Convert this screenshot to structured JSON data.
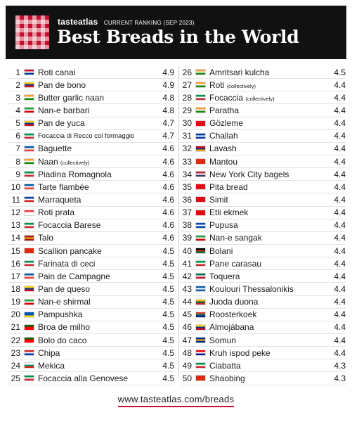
{
  "header": {
    "brand": "tasteatlas",
    "ranking": "CURRENT RANKING (SEP 2023)",
    "title": "Best Breads in the World",
    "logo_icon": "checkered-tablecloth-icon",
    "accent_color": "#c8102e"
  },
  "left_column": [
    {
      "rank": "1",
      "name": "Roti canai",
      "score": "4.9",
      "flag": [
        "#c8102e",
        "#ffffff",
        "#003893"
      ]
    },
    {
      "rank": "2",
      "name": "Pan de bono",
      "score": "4.9",
      "flag": [
        "#fcd116",
        "#003893",
        "#ce1126"
      ]
    },
    {
      "rank": "3",
      "name": "Butter garlic naan",
      "score": "4.8",
      "flag": [
        "#ff9933",
        "#ffffff",
        "#138808"
      ]
    },
    {
      "rank": "4",
      "name": "Nan-e barbari",
      "score": "4.8",
      "flag": [
        "#239f40",
        "#ffffff",
        "#da0000"
      ]
    },
    {
      "rank": "5",
      "name": "Pan de yuca",
      "score": "4.7",
      "flag": [
        "#fcd116",
        "#003893",
        "#ce1126"
      ]
    },
    {
      "rank": "6",
      "name": "Focaccia di Recco col formaggio",
      "score": "4.7",
      "small": true,
      "flag": [
        "#009246",
        "#ffffff",
        "#ce2b37"
      ]
    },
    {
      "rank": "7",
      "name": "Baguette",
      "score": "4.6",
      "flag": [
        "#0055a4",
        "#ffffff",
        "#ef4135"
      ]
    },
    {
      "rank": "8",
      "name": "Naan",
      "qualifier": "(collectively)",
      "score": "4.6",
      "flag": [
        "#ff9933",
        "#ffffff",
        "#138808"
      ]
    },
    {
      "rank": "9",
      "name": "Piadina Romagnola",
      "score": "4.6",
      "flag": [
        "#009246",
        "#ffffff",
        "#ce2b37"
      ]
    },
    {
      "rank": "10",
      "name": "Tarte flambée",
      "score": "4.6",
      "flag": [
        "#0055a4",
        "#ffffff",
        "#ef4135"
      ]
    },
    {
      "rank": "11",
      "name": "Marraqueta",
      "score": "4.6",
      "flag": [
        "#0039a6",
        "#ffffff",
        "#d52b1e"
      ]
    },
    {
      "rank": "12",
      "name": "Roti prata",
      "score": "4.6",
      "flag": [
        "#ef3340",
        "#ffffff",
        "#ffffff"
      ]
    },
    {
      "rank": "13",
      "name": "Focaccia Barese",
      "score": "4.6",
      "flag": [
        "#009246",
        "#ffffff",
        "#ce2b37"
      ]
    },
    {
      "rank": "14",
      "name": "Talo",
      "score": "4.6",
      "flag": [
        "#aa151b",
        "#f1bf00",
        "#aa151b"
      ]
    },
    {
      "rank": "15",
      "name": "Scallion pancake",
      "score": "4.5",
      "flag": [
        "#de2910",
        "#de2910",
        "#de2910"
      ]
    },
    {
      "rank": "16",
      "name": "Farinata di ceci",
      "score": "4.5",
      "flag": [
        "#009246",
        "#ffffff",
        "#ce2b37"
      ]
    },
    {
      "rank": "17",
      "name": "Pain de Campagne",
      "score": "4.5",
      "flag": [
        "#0055a4",
        "#ffffff",
        "#ef4135"
      ]
    },
    {
      "rank": "18",
      "name": "Pan de queso",
      "score": "4.5",
      "flag": [
        "#fcd116",
        "#003893",
        "#ce1126"
      ]
    },
    {
      "rank": "19",
      "name": "Nan-e shirmal",
      "score": "4.5",
      "flag": [
        "#239f40",
        "#ffffff",
        "#da0000"
      ]
    },
    {
      "rank": "20",
      "name": "Pampushka",
      "score": "4.5",
      "flag": [
        "#0057b7",
        "#0057b7",
        "#ffd700"
      ]
    },
    {
      "rank": "21",
      "name": "Broa de milho",
      "score": "4.5",
      "flag": [
        "#006600",
        "#ff0000",
        "#ff0000"
      ]
    },
    {
      "rank": "22",
      "name": "Bolo do caco",
      "score": "4.5",
      "flag": [
        "#006600",
        "#ff0000",
        "#ff0000"
      ]
    },
    {
      "rank": "23",
      "name": "Chipa",
      "score": "4.5",
      "flag": [
        "#d52b1e",
        "#ffffff",
        "#0038a8"
      ]
    },
    {
      "rank": "24",
      "name": "Mekica",
      "score": "4.5",
      "flag": [
        "#ffffff",
        "#00966e",
        "#d62612"
      ]
    },
    {
      "rank": "25",
      "name": "Focaccia alla Genovese",
      "score": "4.5",
      "flag": [
        "#009246",
        "#ffffff",
        "#ce2b37"
      ]
    }
  ],
  "right_column": [
    {
      "rank": "26",
      "name": "Amritsari kulcha",
      "score": "4.5",
      "flag": [
        "#ff9933",
        "#ffffff",
        "#138808"
      ]
    },
    {
      "rank": "27",
      "name": "Roti",
      "qualifier": "(collectively)",
      "score": "4.4",
      "flag": [
        "#ff9933",
        "#ffffff",
        "#138808"
      ]
    },
    {
      "rank": "28",
      "name": "Focaccia",
      "qualifier": "(collectively)",
      "score": "4.4",
      "flag": [
        "#009246",
        "#ffffff",
        "#ce2b37"
      ]
    },
    {
      "rank": "29",
      "name": "Paratha",
      "score": "4.4",
      "flag": [
        "#ff9933",
        "#ffffff",
        "#138808"
      ]
    },
    {
      "rank": "30",
      "name": "Gözleme",
      "score": "4.4",
      "flag": [
        "#e30a17",
        "#e30a17",
        "#e30a17"
      ]
    },
    {
      "rank": "31",
      "name": "Challah",
      "score": "4.4",
      "flag": [
        "#0038b8",
        "#ffffff",
        "#0038b8"
      ]
    },
    {
      "rank": "32",
      "name": "Lavash",
      "score": "4.4",
      "flag": [
        "#d90012",
        "#0033a0",
        "#f2a800"
      ]
    },
    {
      "rank": "33",
      "name": "Mantou",
      "score": "4.4",
      "flag": [
        "#de2910",
        "#de2910",
        "#de2910"
      ]
    },
    {
      "rank": "34",
      "name": "New York City bagels",
      "score": "4.4",
      "flag": [
        "#b22234",
        "#ffffff",
        "#3c3b6e"
      ]
    },
    {
      "rank": "35",
      "name": "Pita bread",
      "score": "4.4",
      "flag": [
        "#e30a17",
        "#e30a17",
        "#e30a17"
      ]
    },
    {
      "rank": "36",
      "name": "Simit",
      "score": "4.4",
      "flag": [
        "#e30a17",
        "#e30a17",
        "#e30a17"
      ]
    },
    {
      "rank": "37",
      "name": "Etli ekmek",
      "score": "4.4",
      "flag": [
        "#e30a17",
        "#e30a17",
        "#e30a17"
      ]
    },
    {
      "rank": "38",
      "name": "Pupusa",
      "score": "4.4",
      "flag": [
        "#0047ab",
        "#ffffff",
        "#0047ab"
      ]
    },
    {
      "rank": "39",
      "name": "Nan-e sangak",
      "score": "4.4",
      "flag": [
        "#239f40",
        "#ffffff",
        "#da0000"
      ]
    },
    {
      "rank": "40",
      "name": "Bolani",
      "score": "4.4",
      "flag": [
        "#000000",
        "#d32011",
        "#007a36"
      ]
    },
    {
      "rank": "41",
      "name": "Pane carasau",
      "score": "4.4",
      "flag": [
        "#009246",
        "#ffffff",
        "#ce2b37"
      ]
    },
    {
      "rank": "42",
      "name": "Toquera",
      "score": "4.4",
      "flag": [
        "#006847",
        "#ffffff",
        "#ce1126"
      ]
    },
    {
      "rank": "43",
      "name": "Koulouri Thessalonikis",
      "score": "4.4",
      "flag": [
        "#0d5eaf",
        "#ffffff",
        "#0d5eaf"
      ]
    },
    {
      "rank": "44",
      "name": "Juoda duona",
      "score": "4.4",
      "flag": [
        "#fdb913",
        "#006a44",
        "#c1272d"
      ]
    },
    {
      "rank": "45",
      "name": "Roosterkoek",
      "score": "4.4",
      "flag": [
        "#de3831",
        "#007a4d",
        "#002395"
      ]
    },
    {
      "rank": "46",
      "name": "Almojábana",
      "score": "4.4",
      "flag": [
        "#fcd116",
        "#003893",
        "#ce1126"
      ]
    },
    {
      "rank": "47",
      "name": "Somun",
      "score": "4.4",
      "flag": [
        "#002395",
        "#fecb00",
        "#002395"
      ]
    },
    {
      "rank": "48",
      "name": "Kruh ispod peke",
      "score": "4.4",
      "flag": [
        "#ff0000",
        "#ffffff",
        "#171796"
      ]
    },
    {
      "rank": "49",
      "name": "Ciabatta",
      "score": "4.3",
      "flag": [
        "#009246",
        "#ffffff",
        "#ce2b37"
      ]
    },
    {
      "rank": "50",
      "name": "Shaobing",
      "score": "4.3",
      "flag": [
        "#de2910",
        "#de2910",
        "#de2910"
      ]
    }
  ],
  "footer": {
    "url": "www.tasteatlas.com/breads"
  }
}
